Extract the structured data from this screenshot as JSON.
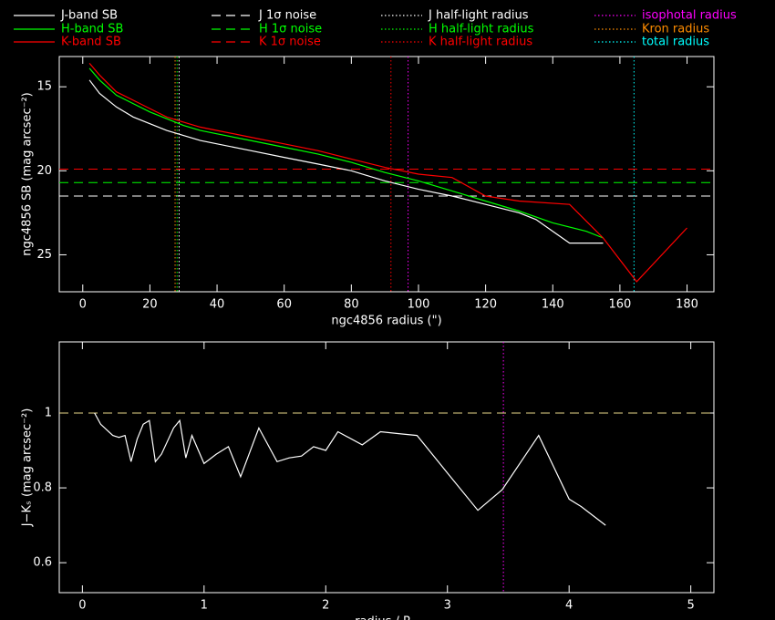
{
  "chart_data": [
    {
      "type": "line",
      "xlabel": "ngc4856 radius (\")",
      "ylabel": "ngc4856 SB (mag arcsec⁻²)",
      "xlim": [
        -7,
        188
      ],
      "ylim": [
        27.2,
        13.2
      ],
      "xticks": [
        0,
        20,
        40,
        60,
        80,
        100,
        120,
        140,
        160,
        180
      ],
      "yticks": [
        15,
        20,
        25
      ],
      "series": [
        {
          "name": "J-band SB",
          "color": "#ffffff",
          "x": [
            2,
            5,
            10,
            15,
            20,
            25,
            30,
            35,
            40,
            50,
            60,
            70,
            80,
            90,
            100,
            110,
            120,
            130,
            135,
            140,
            145,
            155
          ],
          "values": [
            14.6,
            15.4,
            16.2,
            16.8,
            17.2,
            17.6,
            17.9,
            18.2,
            18.4,
            18.8,
            19.2,
            19.6,
            20.0,
            20.6,
            21.1,
            21.5,
            22.0,
            22.5,
            22.9,
            23.6,
            24.3,
            24.3
          ]
        },
        {
          "name": "H-band SB",
          "color": "#00ff00",
          "x": [
            2,
            5,
            10,
            15,
            20,
            25,
            30,
            35,
            40,
            50,
            60,
            70,
            80,
            90,
            100,
            110,
            120,
            130,
            140,
            150,
            155
          ],
          "values": [
            13.9,
            14.6,
            15.5,
            16.0,
            16.5,
            16.9,
            17.3,
            17.6,
            17.8,
            18.2,
            18.6,
            19.0,
            19.5,
            20.1,
            20.6,
            21.2,
            21.8,
            22.4,
            23.1,
            23.6,
            24.0
          ]
        },
        {
          "name": "K-band SB",
          "color": "#ff0000",
          "x": [
            2,
            5,
            10,
            15,
            20,
            25,
            30,
            35,
            40,
            50,
            60,
            70,
            80,
            90,
            100,
            110,
            120,
            130,
            145,
            155,
            165,
            180
          ],
          "values": [
            13.6,
            14.3,
            15.3,
            15.8,
            16.3,
            16.8,
            17.1,
            17.4,
            17.6,
            18.0,
            18.4,
            18.8,
            19.3,
            19.8,
            20.2,
            20.4,
            21.5,
            21.8,
            22.0,
            24.0,
            26.6,
            23.4
          ]
        }
      ],
      "hlines": [
        {
          "name": "J 1σ noise",
          "color": "#ffffff",
          "value": 21.5
        },
        {
          "name": "H 1σ noise",
          "color": "#00ff00",
          "value": 20.7
        },
        {
          "name": "K 1σ noise",
          "color": "#ff0000",
          "value": 19.9
        }
      ],
      "vlines": [
        {
          "name": "J half-light radius",
          "color": "#ffffff",
          "value": 28.7
        },
        {
          "name": "H half-light radius",
          "color": "#00ff00",
          "value": 28.1
        },
        {
          "name": "K half-light radius",
          "color": "#ff0000",
          "value": 91.8
        },
        {
          "name": "isophotal radius",
          "color": "#ff00ff",
          "value": 96.9
        },
        {
          "name": "Kron radius",
          "color": "#ff8c00",
          "value": 27.5
        },
        {
          "name": "total radius",
          "color": "#00ffff",
          "value": 164.2
        }
      ]
    },
    {
      "type": "line",
      "xlabel": "radius / Rⱼₑ",
      "ylabel": "J−Kₛ (mag arcsec⁻²)",
      "xlim": [
        -0.19,
        5.19
      ],
      "ylim": [
        0.52,
        1.19
      ],
      "xticks": [
        0,
        1,
        2,
        3,
        4,
        5
      ],
      "yticks": [
        0.6,
        0.8,
        1
      ],
      "series": [
        {
          "color": "#ffffff",
          "x": [
            0.1,
            0.15,
            0.25,
            0.3,
            0.35,
            0.4,
            0.45,
            0.5,
            0.55,
            0.6,
            0.65,
            0.75,
            0.8,
            0.85,
            0.9,
            1.0,
            1.1,
            1.2,
            1.3,
            1.45,
            1.6,
            1.7,
            1.8,
            1.9,
            2.0,
            2.1,
            2.3,
            2.45,
            2.6,
            2.75,
            3.0,
            3.25,
            3.45,
            3.75,
            4.0,
            4.1,
            4.3
          ],
          "values": [
            1.0,
            0.97,
            0.94,
            0.935,
            0.94,
            0.87,
            0.93,
            0.97,
            0.98,
            0.87,
            0.89,
            0.96,
            0.98,
            0.88,
            0.94,
            0.865,
            0.89,
            0.91,
            0.83,
            0.96,
            0.87,
            0.88,
            0.885,
            0.91,
            0.9,
            0.95,
            0.915,
            0.95,
            0.945,
            0.94,
            0.84,
            0.74,
            0.795,
            0.94,
            0.77,
            0.75,
            0.7
          ]
        }
      ],
      "hlines": [
        {
          "color": "#e8d88a",
          "value": 1
        }
      ],
      "vlines": [
        {
          "color": "#ff00ff",
          "value": 3.46
        }
      ]
    }
  ]
}
